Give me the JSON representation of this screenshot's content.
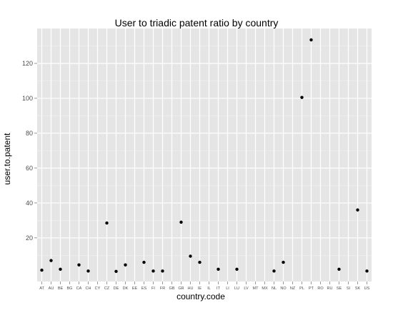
{
  "chart_data": {
    "type": "scatter",
    "title": "User to triadic patent ratio by country",
    "xlabel": "country.code",
    "ylabel": "user.to.patent",
    "ylim": [
      -5,
      140
    ],
    "yticks": [
      20,
      40,
      60,
      80,
      100,
      120
    ],
    "grid": true,
    "background": "#e5e5e5",
    "grid_color": "#ffffff",
    "point_color": "#000000",
    "categories": [
      "AT",
      "AU",
      "BE",
      "BG",
      "CA",
      "CH",
      "CY",
      "CZ",
      "DE",
      "DK",
      "EE",
      "ES",
      "FI",
      "FR",
      "GB",
      "GR",
      "HU",
      "IE",
      "IL",
      "IT",
      "LI",
      "LU",
      "LV",
      "MT",
      "MX",
      "NL",
      "NO",
      "NZ",
      "PL",
      "PT",
      "RO",
      "RU",
      "SE",
      "SI",
      "SK",
      "US"
    ],
    "values": [
      1.5,
      7,
      2,
      null,
      4.5,
      1,
      null,
      28.5,
      0.8,
      4.5,
      null,
      6,
      1,
      1,
      null,
      29,
      9.5,
      6,
      null,
      2,
      null,
      2,
      null,
      null,
      null,
      1,
      6,
      null,
      100.5,
      133.5,
      null,
      null,
      2,
      null,
      36,
      1
    ]
  }
}
